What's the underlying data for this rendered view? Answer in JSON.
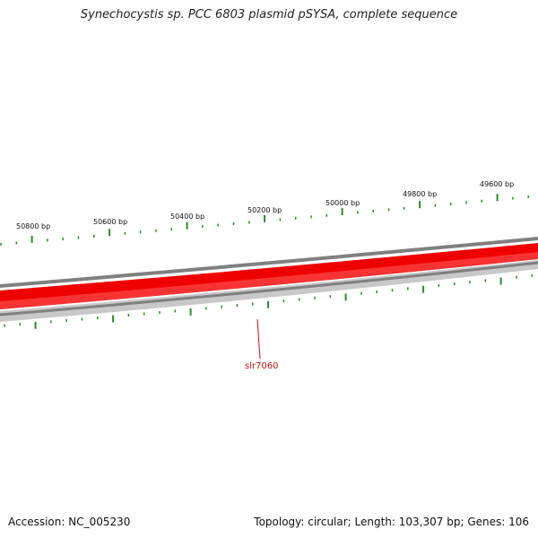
{
  "title": "Synechocystis sp. PCC 6803 plasmid pSYSA, complete sequence",
  "footer": {
    "accession": "Accession: NC_005230",
    "summary": "Topology: circular; Length: 103,307 bp; Genes: 106"
  },
  "map": {
    "outer_ticks": [
      {
        "label": "50800 bp"
      },
      {
        "label": "50600 bp"
      },
      {
        "label": "50400 bp"
      },
      {
        "label": "50200 bp"
      },
      {
        "label": "50000 bp"
      },
      {
        "label": "49800 bp"
      },
      {
        "label": "49600 bp"
      }
    ],
    "gene_labels": [
      {
        "label": "slr7060"
      }
    ],
    "colors": {
      "forward_strand": "#ee0000",
      "backbone": "#808080",
      "reverse_band": "#c8c8c8",
      "ticks": "#2a8a2a",
      "gene_label": "#cc1111"
    }
  }
}
